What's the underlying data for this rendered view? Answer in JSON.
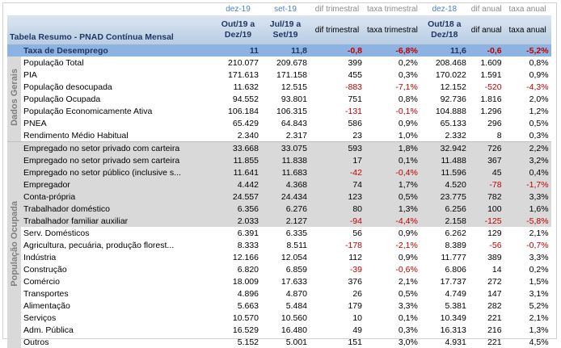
{
  "header": {
    "period_labels": [
      "dez-19",
      "set-19",
      "dif trimestral",
      "taxa trimestral",
      "dez-18",
      "dif anual",
      "taxa anual"
    ],
    "title": "Tabela Resumo - PNAD Contínua Mensal",
    "columns": [
      "Out/19 a Dez/19",
      "Jul/19 a Set/19",
      "dif trimestral",
      "taxa trimestral",
      "Out/18 a Dez/18",
      "dif anual",
      "taxa anual"
    ]
  },
  "highlight": {
    "label": "Taxa de Desemprego",
    "cells": [
      "11",
      "11,8",
      "-0,8",
      "-6,8%",
      "11,6",
      "-0,6",
      "-5,2%"
    ]
  },
  "groups": [
    {
      "label": "Dados Gerais",
      "rows": [
        {
          "label": "População Total",
          "cells": [
            "210.077",
            "209.678",
            "399",
            "0,2%",
            "208.468",
            "1.609",
            "0,8%"
          ],
          "shaded": false
        },
        {
          "label": "PIA",
          "cells": [
            "171.613",
            "171.158",
            "455",
            "0,3%",
            "170.022",
            "1.591",
            "0,9%"
          ],
          "shaded": false
        },
        {
          "label": "População desocupada",
          "cells": [
            "11.632",
            "12.515",
            "-883",
            "-7,1%",
            "12.152",
            "-520",
            "-4,3%"
          ],
          "shaded": false
        },
        {
          "label": "População Ocupada",
          "cells": [
            "94.552",
            "93.801",
            "751",
            "0,8%",
            "92.736",
            "1.816",
            "2,0%"
          ],
          "shaded": false
        },
        {
          "label": "População Economicamente Ativa",
          "cells": [
            "106.184",
            "106.315",
            "-131",
            "-0,1%",
            "104.888",
            "1.296",
            "1,2%"
          ],
          "shaded": false
        },
        {
          "label": "PNEA",
          "cells": [
            "65.429",
            "64.843",
            "586",
            "0,9%",
            "65.133",
            "296",
            "0,5%"
          ],
          "shaded": false
        },
        {
          "label": "Rendimento Médio Habitual",
          "cells": [
            "2.340",
            "2.317",
            "23",
            "1,0%",
            "2.332",
            "8",
            "0,3%"
          ],
          "shaded": false
        }
      ]
    },
    {
      "label": "População Ocupada",
      "rows": [
        {
          "label": "Empregado no setor privado com carteira",
          "cells": [
            "33.668",
            "33.075",
            "593",
            "1,8%",
            "32.942",
            "726",
            "2,2%"
          ],
          "shaded": true
        },
        {
          "label": "Empregado no setor privado sem carteira",
          "cells": [
            "11.855",
            "11.838",
            "17",
            "0,1%",
            "11.488",
            "367",
            "3,2%"
          ],
          "shaded": true
        },
        {
          "label": "Empregado no setor público (inclusive s...",
          "cells": [
            "11.641",
            "11.683",
            "-42",
            "-0,4%",
            "11.596",
            "45",
            "0,4%"
          ],
          "shaded": true
        },
        {
          "label": "Empregador",
          "cells": [
            "4.442",
            "4.368",
            "74",
            "1,7%",
            "4.520",
            "-78",
            "-1,7%"
          ],
          "shaded": true
        },
        {
          "label": "Conta-própria",
          "cells": [
            "24.557",
            "24.434",
            "123",
            "0,5%",
            "23.775",
            "782",
            "3,3%"
          ],
          "shaded": true
        },
        {
          "label": "Trabalhador doméstico",
          "cells": [
            "6.356",
            "6.276",
            "80",
            "1,3%",
            "6.256",
            "100",
            "1,6%"
          ],
          "shaded": true
        },
        {
          "label": "Trabalhador familiar auxiliar",
          "cells": [
            "2.033",
            "2.127",
            "-94",
            "-4,4%",
            "2.158",
            "-125",
            "-5,8%"
          ],
          "shaded": true
        },
        {
          "label": "Serv. Domésticos",
          "cells": [
            "6.391",
            "6.335",
            "56",
            "0,9%",
            "6.262",
            "129",
            "2,1%"
          ],
          "shaded": false
        },
        {
          "label": "Agricultura, pecuária, produção florest...",
          "cells": [
            "8.333",
            "8.511",
            "-178",
            "-2,1%",
            "8.389",
            "-56",
            "-0,7%"
          ],
          "shaded": false
        },
        {
          "label": "Indústria",
          "cells": [
            "12.166",
            "12.054",
            "112",
            "0,9%",
            "11.777",
            "389",
            "3,3%"
          ],
          "shaded": false
        },
        {
          "label": "Construção",
          "cells": [
            "6.820",
            "6.859",
            "-39",
            "-0,6%",
            "6.806",
            "14",
            "0,2%"
          ],
          "shaded": false
        },
        {
          "label": "Comércio",
          "cells": [
            "18.009",
            "17.633",
            "376",
            "2,1%",
            "17.737",
            "272",
            "1,5%"
          ],
          "shaded": false
        },
        {
          "label": "Transportes",
          "cells": [
            "4.896",
            "4.870",
            "26",
            "0,5%",
            "4.749",
            "147",
            "3,1%"
          ],
          "shaded": false
        },
        {
          "label": "Alimentação",
          "cells": [
            "5.663",
            "5.484",
            "179",
            "3,3%",
            "5.381",
            "282",
            "5,2%"
          ],
          "shaded": false
        },
        {
          "label": "Serviços",
          "cells": [
            "10.570",
            "10.560",
            "10",
            "0,1%",
            "10.349",
            "221",
            "2,1%"
          ],
          "shaded": false
        },
        {
          "label": "Adm. Pública",
          "cells": [
            "16.529",
            "16.480",
            "49",
            "0,3%",
            "16.313",
            "216",
            "1,3%"
          ],
          "shaded": false
        },
        {
          "label": "Outros",
          "cells": [
            "5.152",
            "5.001",
            "151",
            "3,0%",
            "4.931",
            "221",
            "4,5%"
          ],
          "shaded": false
        }
      ]
    }
  ]
}
